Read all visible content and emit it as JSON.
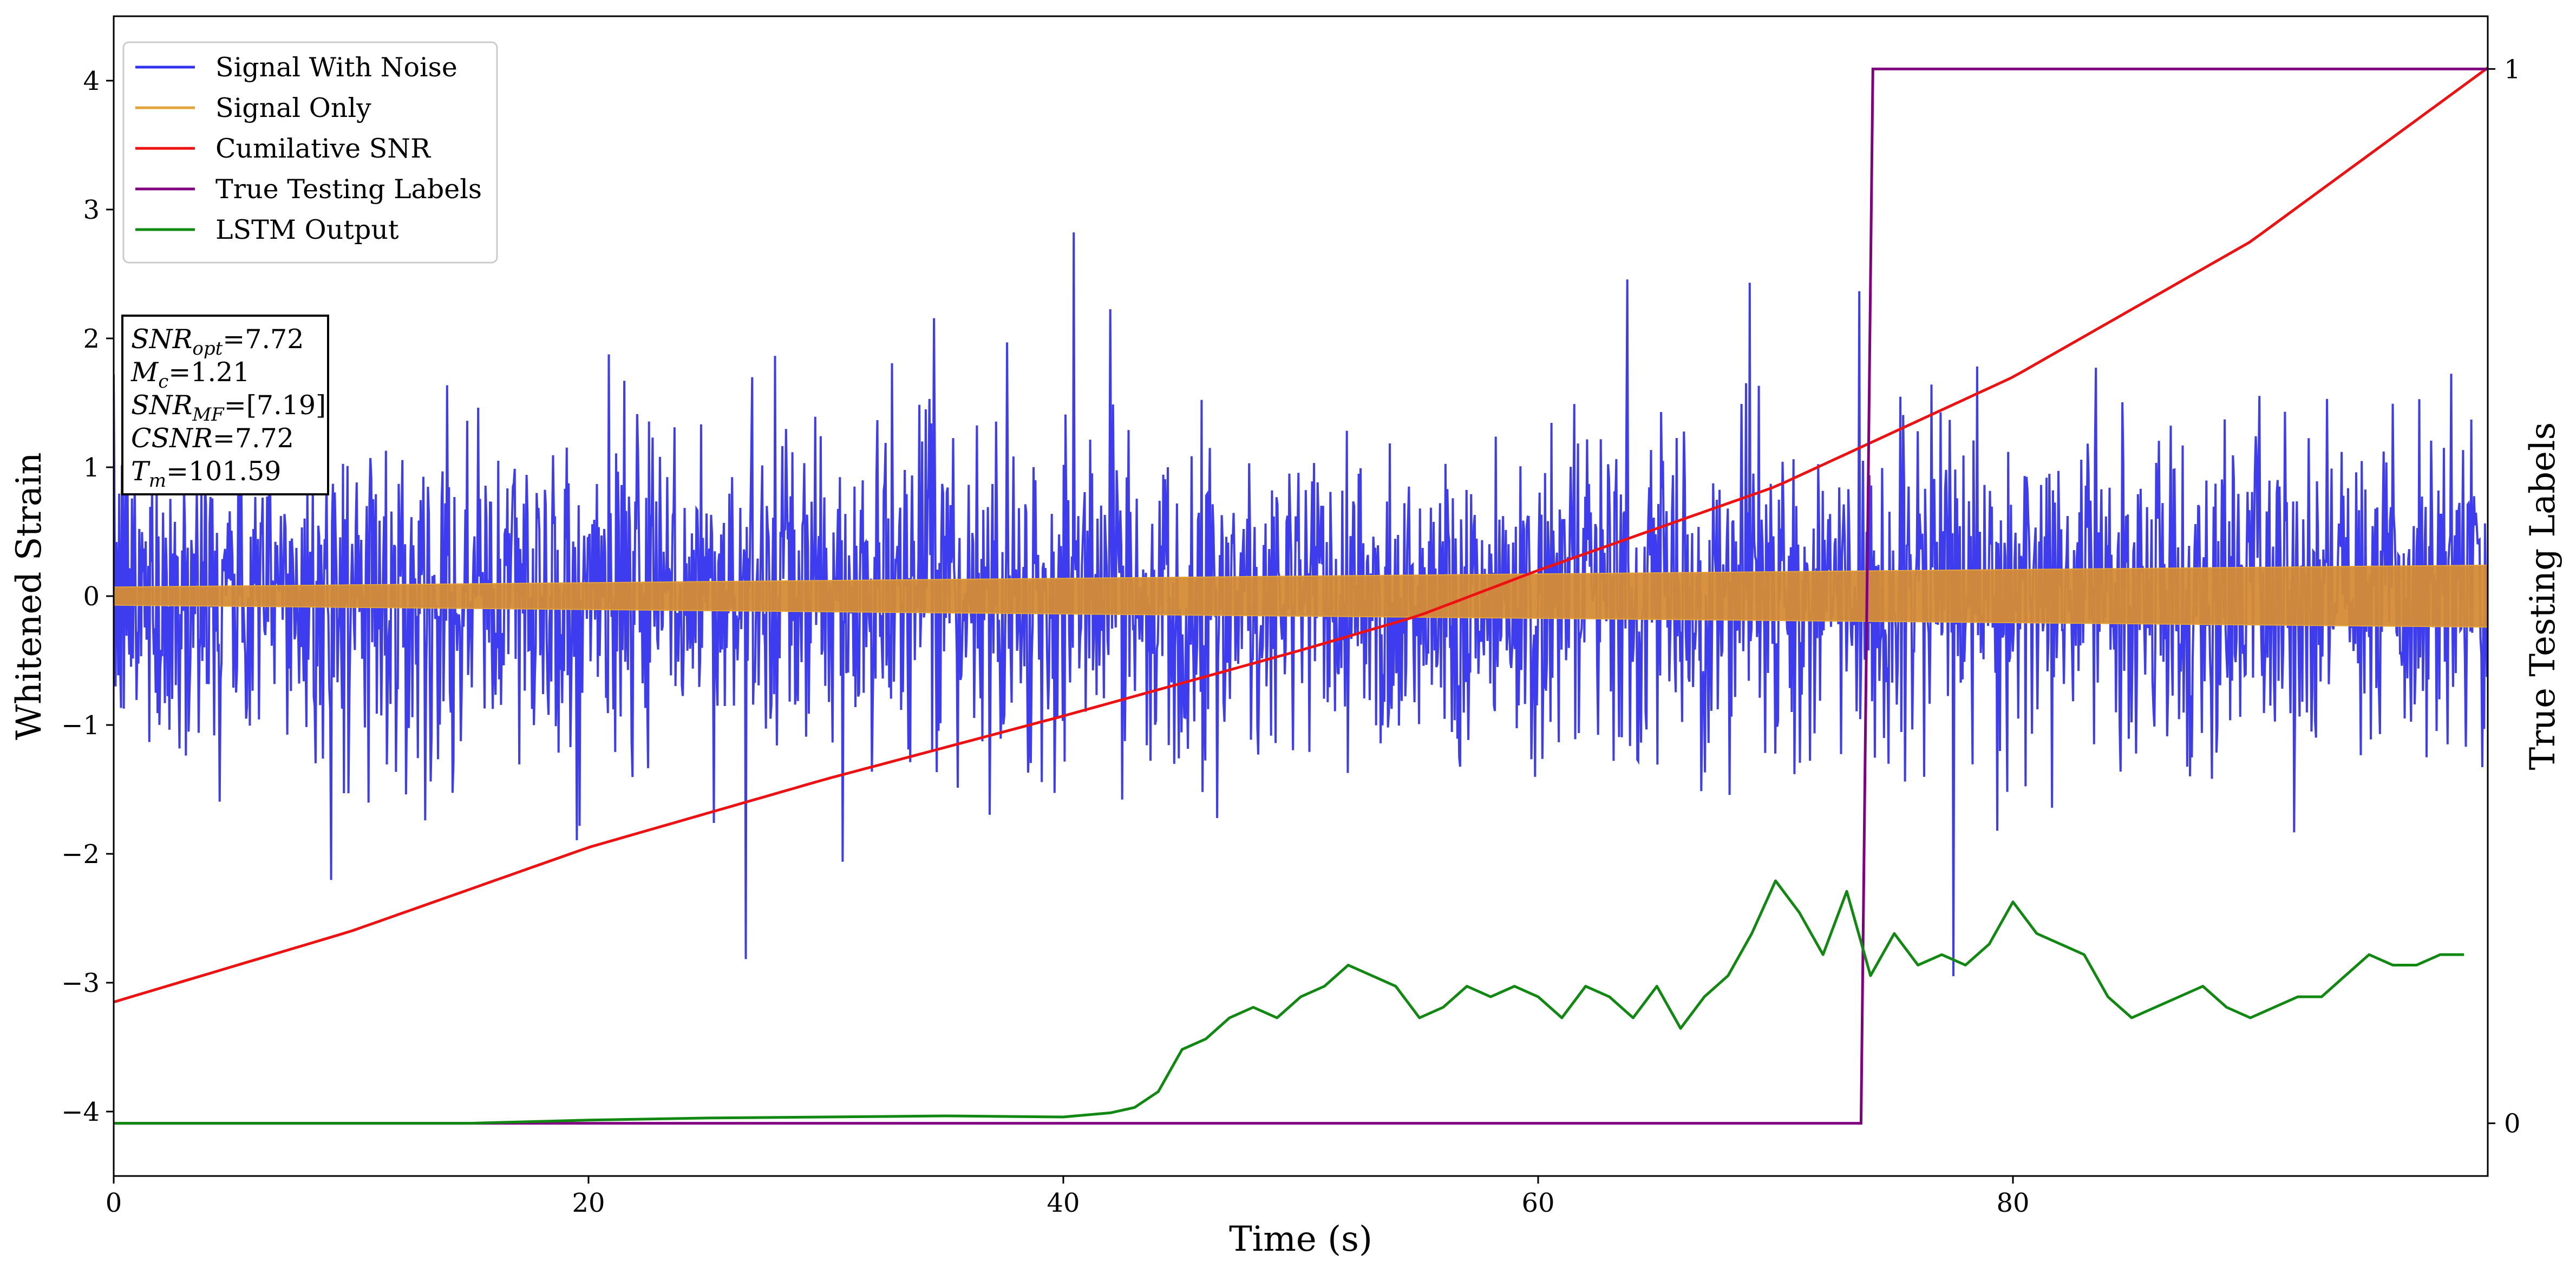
{
  "chart_data": {
    "type": "line",
    "title": "",
    "xlabel": "Time (s)",
    "ylabel": "Whitened Strain",
    "y2label": "True Testing Labels",
    "xlim": [
      0,
      100
    ],
    "ylim": [
      -4.5,
      4.5
    ],
    "y2lim": [
      -0.05,
      1.05
    ],
    "xticks": [
      0,
      20,
      40,
      60,
      80
    ],
    "yticks": [
      -4,
      -3,
      -2,
      -1,
      0,
      1,
      2,
      3,
      4
    ],
    "y2ticks": [
      0,
      1
    ],
    "grid": false,
    "legend_position": "top-left",
    "series": [
      {
        "name": "Signal With Noise",
        "color": "#3333ee",
        "axis": "left",
        "kind": "noise",
        "std": 0.62,
        "x_range": [
          0,
          100
        ]
      },
      {
        "name": "Signal Only",
        "color": "#e1a33a",
        "axis": "left",
        "kind": "band",
        "x": [
          0,
          100
        ],
        "amplitude": [
          0.07,
          0.24
        ]
      },
      {
        "name": "Cumilative SNR",
        "color": "#ee1111",
        "axis": "left",
        "kind": "curve",
        "x": [
          0,
          10,
          20,
          30,
          40,
          50,
          55,
          60,
          70,
          80,
          90,
          100
        ],
        "values": [
          -3.15,
          -2.6,
          -1.95,
          -1.42,
          -0.93,
          -0.42,
          -0.15,
          0.2,
          0.85,
          1.7,
          2.75,
          4.1
        ]
      },
      {
        "name": "True Testing Labels",
        "color": "#800080",
        "axis": "right",
        "kind": "step",
        "x": [
          0,
          73.6,
          74.1,
          100
        ],
        "values": [
          0,
          0,
          1,
          1
        ]
      },
      {
        "name": "LSTM Output",
        "color": "#118811",
        "axis": "right",
        "kind": "curve",
        "x": [
          0,
          15,
          20,
          25,
          30,
          35,
          40,
          42,
          43,
          44,
          45,
          46,
          47,
          48,
          49,
          50,
          51,
          52,
          53,
          54,
          55,
          56,
          57,
          58,
          59,
          60,
          61,
          62,
          63,
          64,
          65,
          66,
          67,
          68,
          69,
          70,
          71,
          72,
          73,
          74,
          75,
          76,
          77,
          78,
          79,
          80,
          81,
          82,
          83,
          84,
          85,
          86,
          87,
          88,
          89,
          90,
          91,
          92,
          93,
          94,
          95,
          96,
          97,
          98,
          99
        ],
        "values": [
          0.0,
          0.0,
          0.003,
          0.005,
          0.006,
          0.007,
          0.006,
          0.01,
          0.015,
          0.03,
          0.07,
          0.08,
          0.1,
          0.11,
          0.1,
          0.12,
          0.13,
          0.15,
          0.14,
          0.13,
          0.1,
          0.11,
          0.13,
          0.12,
          0.13,
          0.12,
          0.1,
          0.13,
          0.12,
          0.1,
          0.13,
          0.09,
          0.12,
          0.14,
          0.18,
          0.23,
          0.2,
          0.16,
          0.22,
          0.14,
          0.18,
          0.15,
          0.16,
          0.15,
          0.17,
          0.21,
          0.18,
          0.17,
          0.16,
          0.12,
          0.1,
          0.11,
          0.12,
          0.13,
          0.11,
          0.1,
          0.11,
          0.12,
          0.12,
          0.14,
          0.16,
          0.15,
          0.15,
          0.16,
          0.16
        ]
      }
    ],
    "annotation": {
      "lines": [
        {
          "sym": "SNR",
          "sub": "opt",
          "rest": "=7.72"
        },
        {
          "sym": "M",
          "sub": "c",
          "rest": "=1.21"
        },
        {
          "sym": "SNR",
          "sub": "MF",
          "rest": "=[7.19]"
        },
        {
          "sym": "CSNR",
          "sub": "",
          "rest": "=7.72"
        },
        {
          "sym": "T",
          "sub": "m",
          "rest": "=101.59"
        }
      ]
    }
  }
}
